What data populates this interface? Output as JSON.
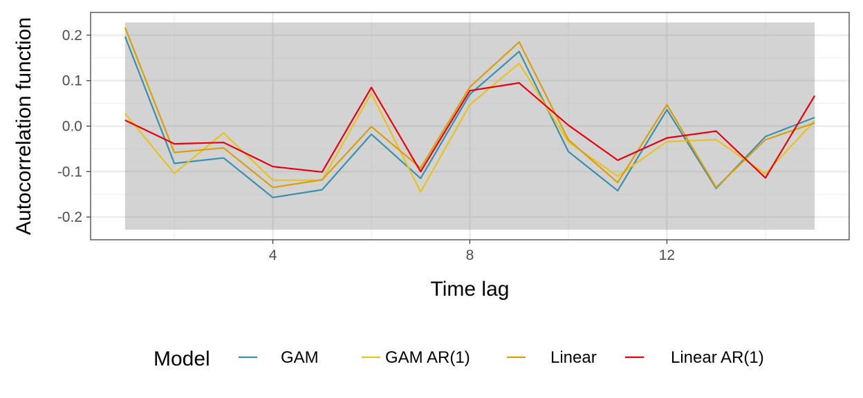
{
  "chart_data": {
    "type": "line",
    "xlabel": "Time lag",
    "ylabel": "Autocorrelation function",
    "xlim": [
      0.3,
      15.7
    ],
    "ylim": [
      -0.25,
      0.25
    ],
    "x_ticks": [
      4,
      8,
      12
    ],
    "y_ticks": [
      0.2,
      0.1,
      0.0,
      -0.1,
      -0.2
    ],
    "y_tick_labels": [
      "0.2",
      "0.1",
      "0.0",
      "-0.1",
      "-0.2"
    ],
    "confidence_band": [
      -0.228,
      0.228
    ],
    "band_color": "#d3d3d3",
    "grid": true,
    "legend_title": "Model",
    "legend_position": "bottom",
    "x": [
      1,
      2,
      3,
      4,
      5,
      6,
      7,
      8,
      9,
      10,
      11,
      12,
      13,
      14,
      15
    ],
    "series": [
      {
        "name": "GAM",
        "color": "#3a90a8",
        "values": [
          0.197,
          -0.082,
          -0.07,
          -0.157,
          -0.14,
          -0.018,
          -0.115,
          0.07,
          0.164,
          -0.056,
          -0.142,
          0.036,
          -0.137,
          -0.023,
          0.019
        ]
      },
      {
        "name": "GAM AR(1)",
        "color": "#e8c21e",
        "values": [
          0.028,
          -0.104,
          -0.015,
          -0.119,
          -0.119,
          0.072,
          -0.145,
          0.047,
          0.138,
          -0.035,
          -0.11,
          -0.034,
          -0.03,
          -0.105,
          0.012
        ]
      },
      {
        "name": "Linear",
        "color": "#d99e0b",
        "values": [
          0.217,
          -0.058,
          -0.048,
          -0.135,
          -0.118,
          -0.001,
          -0.092,
          0.086,
          0.185,
          -0.03,
          -0.124,
          0.047,
          -0.135,
          -0.03,
          0.007
        ]
      },
      {
        "name": "Linear AR(1)",
        "color": "#e8000b",
        "values": [
          0.013,
          -0.039,
          -0.036,
          -0.089,
          -0.101,
          0.085,
          -0.1,
          0.078,
          0.095,
          0.002,
          -0.075,
          -0.026,
          -0.011,
          -0.114,
          0.067
        ]
      }
    ]
  }
}
